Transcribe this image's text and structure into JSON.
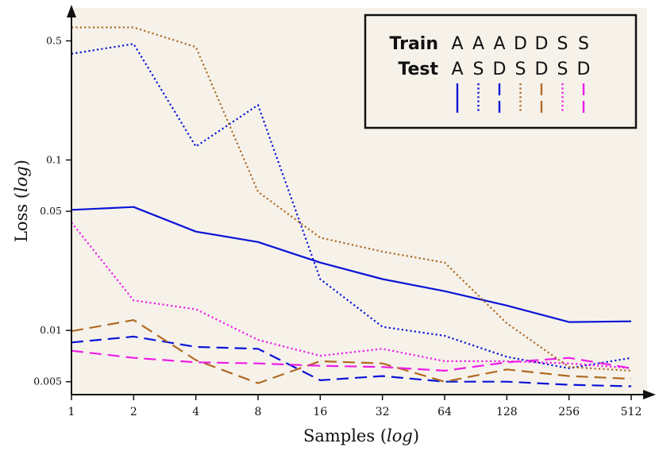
{
  "chart_data": {
    "type": "line",
    "xlabel": "Samples",
    "ylabel": "Loss",
    "axis_label_suffix": "log",
    "x_scale": "log2",
    "y_scale": "log",
    "x": [
      1,
      2,
      4,
      8,
      16,
      32,
      64,
      128,
      256,
      512
    ],
    "x_tick_labels": [
      "1",
      "2",
      "4",
      "8",
      "16",
      "32",
      "64",
      "128",
      "256",
      "512"
    ],
    "y_ticks": [
      0.005,
      0.01,
      0.05,
      0.1,
      0.5
    ],
    "y_tick_labels": [
      "0.005",
      "0.01",
      "0.05",
      "0.1",
      "0.5"
    ],
    "ylim": [
      0.0042,
      0.78
    ],
    "grid": false,
    "background": "#f6f2ea",
    "legend": {
      "position": "top-right",
      "train_label": "Train",
      "test_label": "Test",
      "train": [
        "A",
        "A",
        "A",
        "D",
        "D",
        "S",
        "S"
      ],
      "test": [
        "A",
        "S",
        "D",
        "S",
        "D",
        "S",
        "D"
      ]
    },
    "series": [
      {
        "train": "A",
        "test": "A",
        "color": "#0a14d6",
        "dash": "solid",
        "values": [
          0.051,
          0.053,
          0.038,
          0.033,
          0.025,
          0.02,
          0.017,
          0.014,
          0.0112,
          0.0113
        ]
      },
      {
        "train": "A",
        "test": "S",
        "color": "#0a14d6",
        "dash": "dotted",
        "values": [
          0.42,
          0.48,
          0.12,
          0.21,
          0.02,
          0.0105,
          0.0093,
          0.007,
          0.006,
          0.0069
        ]
      },
      {
        "train": "A",
        "test": "D",
        "color": "#0a14d6",
        "dash": "dashed",
        "values": [
          0.0085,
          0.0092,
          0.008,
          0.0078,
          0.0051,
          0.0054,
          0.005,
          0.005,
          0.0048,
          0.0047
        ]
      },
      {
        "train": "D",
        "test": "S",
        "color": "#b06a24",
        "dash": "dotted",
        "values": [
          0.6,
          0.6,
          0.46,
          0.065,
          0.035,
          0.029,
          0.025,
          0.011,
          0.0061,
          0.0058
        ]
      },
      {
        "train": "D",
        "test": "D",
        "color": "#b06a24",
        "dash": "dashed",
        "values": [
          0.0099,
          0.0115,
          0.0067,
          0.0049,
          0.0066,
          0.0064,
          0.005,
          0.0059,
          0.0054,
          0.0052
        ]
      },
      {
        "train": "S",
        "test": "S",
        "color": "#ee1ce6",
        "dash": "dotted",
        "values": [
          0.043,
          0.015,
          0.0133,
          0.0088,
          0.0071,
          0.0078,
          0.0066,
          0.0066,
          0.0064,
          0.006
        ]
      },
      {
        "train": "S",
        "test": "D",
        "color": "#ee1ce6",
        "dash": "dashed",
        "values": [
          0.0076,
          0.0069,
          0.0065,
          0.0064,
          0.0062,
          0.0061,
          0.0058,
          0.0065,
          0.0069,
          0.006
        ]
      }
    ]
  }
}
